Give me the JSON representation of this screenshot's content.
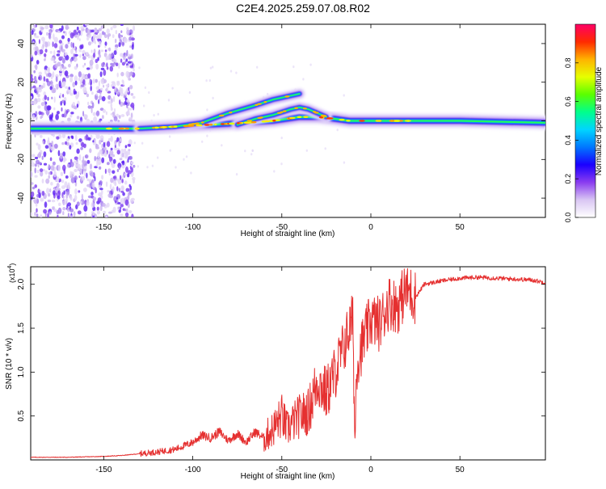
{
  "title": "C2E4.2025.259.07.08.R02",
  "chart_data": [
    {
      "type": "heatmap",
      "name": "spectrogram",
      "xlabel": "Height of straight line (km)",
      "ylabel": "Frequency (Hz)",
      "xlim": [
        -191,
        98
      ],
      "ylim": [
        -50,
        50
      ],
      "xticks": [
        -150,
        -100,
        -50,
        0,
        50
      ],
      "yticks": [
        -40,
        -20,
        0,
        20,
        40
      ],
      "colorbar": {
        "label": "Normalized spectral amplitude",
        "range": [
          0,
          1
        ],
        "ticks": [
          "0.0",
          "0.2",
          "0.4",
          "0.6",
          "0.8"
        ],
        "tick_values": [
          0.0,
          0.2,
          0.4,
          0.6,
          0.8
        ],
        "colors": [
          "#ffffff",
          "#d9c6f3",
          "#8a3cf0",
          "#1a00ff",
          "#0077ff",
          "#00d5ff",
          "#00ff8c",
          "#5aff00",
          "#e6ff00",
          "#ffb300",
          "#ff2a00",
          "#ff0066"
        ]
      },
      "tracks": [
        {
          "name": "carrier",
          "x": [
            -191,
            -150,
            -130,
            -110,
            -90,
            -70,
            -55,
            -40,
            -30,
            -20,
            -12,
            -5,
            0,
            20,
            50,
            98
          ],
          "f": [
            -4,
            -4,
            -4,
            -3,
            -2,
            -1,
            0,
            2,
            2,
            1,
            0,
            0,
            0,
            0,
            0,
            -1
          ]
        },
        {
          "name": "upper",
          "x": [
            -130,
            -110,
            -95,
            -80,
            -65,
            -55,
            -45,
            -40
          ],
          "f": [
            -4,
            -3,
            -1,
            4,
            8,
            11,
            13,
            14
          ]
        },
        {
          "name": "lower",
          "x": [
            -75,
            -65,
            -55,
            -45,
            -40,
            -35,
            -25
          ],
          "f": [
            -2,
            1,
            3,
            6,
            7,
            6,
            2
          ]
        }
      ]
    },
    {
      "type": "line",
      "name": "snr",
      "xlabel": "Height of straight line (km)",
      "ylabel": "SNR (10 * v/v)",
      "exponent": "(x10",
      "exponent_power": "4",
      "exponent_close": ")",
      "xlim": [
        -191,
        98
      ],
      "ylim": [
        0,
        2.2
      ],
      "xticks": [
        -150,
        -100,
        -50,
        0,
        50
      ],
      "yticks": [
        0.5,
        1.0,
        1.5,
        2.0
      ],
      "ytick_labels": [
        "0.5",
        "1.0",
        "1.5",
        "2.0"
      ],
      "series": [
        {
          "name": "SNR",
          "color": "#e53030",
          "x": [
            -191,
            -170,
            -150,
            -140,
            -130,
            -120,
            -110,
            -100,
            -95,
            -90,
            -85,
            -80,
            -75,
            -70,
            -65,
            -60,
            -55,
            -50,
            -47,
            -45,
            -40,
            -35,
            -30,
            -25,
            -20,
            -15,
            -12,
            -10,
            -9,
            -8,
            -5,
            0,
            5,
            10,
            15,
            20,
            25,
            30,
            40,
            50,
            60,
            70,
            80,
            90,
            98
          ],
          "y": [
            0.03,
            0.03,
            0.04,
            0.05,
            0.07,
            0.09,
            0.12,
            0.2,
            0.28,
            0.25,
            0.32,
            0.22,
            0.3,
            0.2,
            0.32,
            0.25,
            0.35,
            0.5,
            0.35,
            0.4,
            0.5,
            0.55,
            0.9,
            0.75,
            1.0,
            1.3,
            1.5,
            1.6,
            0.15,
            1.1,
            1.3,
            1.6,
            1.55,
            1.8,
            1.75,
            1.95,
            1.85,
            2.0,
            2.04,
            2.07,
            2.08,
            2.07,
            2.06,
            2.05,
            2.02
          ]
        }
      ]
    }
  ]
}
